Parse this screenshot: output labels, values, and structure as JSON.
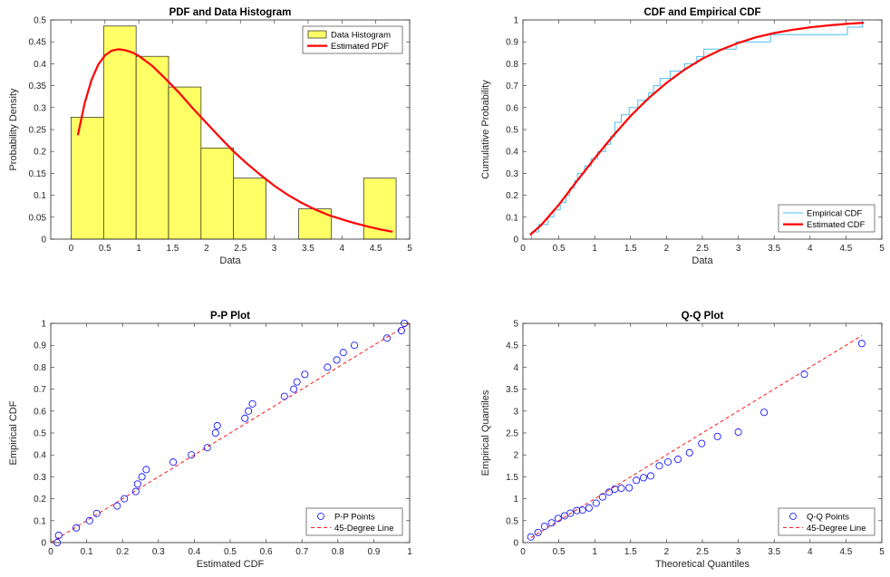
{
  "chart_data": [
    {
      "id": "pdf",
      "type": "bar",
      "title": "PDF and Data Histogram",
      "xlabel": "Data",
      "ylabel": "Probability Density",
      "xlim": [
        -0.3,
        5
      ],
      "ylim": [
        0,
        0.5
      ],
      "xticks": [
        0,
        0.5,
        1,
        1.5,
        2,
        2.5,
        3,
        3.5,
        4,
        4.5,
        5
      ],
      "xticklabels": [
        "0",
        "0.5",
        "1",
        "1.5",
        "2",
        "2.5",
        "3",
        "3.5",
        "4",
        "4.5",
        "5"
      ],
      "yticks": [
        0,
        0.05,
        0.1,
        0.15,
        0.2,
        0.25,
        0.3,
        0.35,
        0.4,
        0.45,
        0.5
      ],
      "yticklabels": [
        "0",
        "0.05",
        "0.1",
        "0.15",
        "0.2",
        "0.25",
        "0.3",
        "0.35",
        "0.4",
        "0.45",
        "0.5"
      ],
      "bins": [
        {
          "x0": 0.0,
          "x1": 0.48,
          "value": 0.278
        },
        {
          "x0": 0.48,
          "x1": 0.96,
          "value": 0.486
        },
        {
          "x0": 0.96,
          "x1": 1.44,
          "value": 0.417
        },
        {
          "x0": 1.44,
          "x1": 1.92,
          "value": 0.347
        },
        {
          "x0": 1.92,
          "x1": 2.4,
          "value": 0.208
        },
        {
          "x0": 2.4,
          "x1": 2.88,
          "value": 0.139
        },
        {
          "x0": 2.88,
          "x1": 3.36,
          "value": 0.0
        },
        {
          "x0": 3.36,
          "x1": 3.84,
          "value": 0.069
        },
        {
          "x0": 3.84,
          "x1": 4.32,
          "value": 0.0
        },
        {
          "x0": 4.32,
          "x1": 4.8,
          "value": 0.139
        }
      ],
      "curve": {
        "x": [
          0.1,
          0.2,
          0.3,
          0.4,
          0.5,
          0.6,
          0.7,
          0.8,
          0.9,
          1.0,
          1.2,
          1.4,
          1.6,
          1.8,
          2.0,
          2.2,
          2.4,
          2.6,
          2.8,
          3.0,
          3.2,
          3.4,
          3.6,
          3.8,
          4.0,
          4.2,
          4.4,
          4.6,
          4.75
        ],
        "y": [
          0.237,
          0.31,
          0.362,
          0.398,
          0.419,
          0.43,
          0.433,
          0.431,
          0.426,
          0.418,
          0.395,
          0.365,
          0.333,
          0.298,
          0.265,
          0.232,
          0.2,
          0.172,
          0.146,
          0.122,
          0.101,
          0.083,
          0.068,
          0.055,
          0.045,
          0.036,
          0.028,
          0.021,
          0.017
        ]
      },
      "series": [
        {
          "name": "Data Histogram",
          "color": "#ffff66",
          "edge": "#000000"
        },
        {
          "name": "Estimated PDF",
          "color": "#ff0000"
        }
      ],
      "legend": "top-right"
    },
    {
      "id": "cdf",
      "type": "line",
      "title": "CDF and Empirical CDF",
      "xlabel": "Data",
      "ylabel": "Cumulative Probability",
      "xlim": [
        0,
        5
      ],
      "ylim": [
        0,
        1
      ],
      "xticks": [
        0,
        0.5,
        1,
        1.5,
        2,
        2.5,
        3,
        3.5,
        4,
        4.5,
        5
      ],
      "xticklabels": [
        "0",
        "0.5",
        "1",
        "1.5",
        "2",
        "2.5",
        "3",
        "3.5",
        "4",
        "4.5",
        "5"
      ],
      "yticks": [
        0,
        0.1,
        0.2,
        0.3,
        0.4,
        0.5,
        0.6,
        0.7,
        0.8,
        0.9,
        1
      ],
      "yticklabels": [
        "0",
        "0.1",
        "0.2",
        "0.3",
        "0.4",
        "0.5",
        "0.6",
        "0.7",
        "0.8",
        "0.9",
        "1"
      ],
      "empirical": {
        "x": [
          0.12,
          0.22,
          0.35,
          0.43,
          0.52,
          0.6,
          0.65,
          0.72,
          0.76,
          0.86,
          0.95,
          1.04,
          1.15,
          1.22,
          1.28,
          1.37,
          1.48,
          1.6,
          1.75,
          1.82,
          1.91,
          2.05,
          2.25,
          2.42,
          2.52,
          2.97,
          3.45,
          4.52,
          4.73
        ],
        "y": [
          0.033,
          0.067,
          0.1,
          0.133,
          0.167,
          0.2,
          0.233,
          0.267,
          0.3,
          0.333,
          0.367,
          0.4,
          0.433,
          0.467,
          0.533,
          0.567,
          0.6,
          0.633,
          0.667,
          0.7,
          0.733,
          0.767,
          0.8,
          0.833,
          0.867,
          0.9,
          0.933,
          0.967,
          1.0
        ]
      },
      "curve": {
        "x": [
          0.1,
          0.25,
          0.5,
          0.75,
          1.0,
          1.25,
          1.5,
          1.75,
          2.0,
          2.25,
          2.5,
          2.75,
          3.0,
          3.25,
          3.5,
          3.75,
          4.0,
          4.25,
          4.5,
          4.75
        ],
        "y": [
          0.02,
          0.063,
          0.157,
          0.264,
          0.369,
          0.469,
          0.562,
          0.643,
          0.713,
          0.773,
          0.823,
          0.863,
          0.895,
          0.921,
          0.94,
          0.955,
          0.966,
          0.975,
          0.982,
          0.987
        ]
      },
      "series": [
        {
          "name": "Empirical CDF",
          "color": "#4dbeee"
        },
        {
          "name": "Estimated CDF",
          "color": "#ff0000"
        }
      ],
      "legend": "bottom-right"
    },
    {
      "id": "pp",
      "type": "scatter",
      "title": "P-P Plot",
      "xlabel": "Estimated CDF",
      "ylabel": "Empirical CDF",
      "xlim": [
        0,
        1
      ],
      "ylim": [
        0,
        1
      ],
      "xticks": [
        0,
        0.1,
        0.2,
        0.3,
        0.4,
        0.5,
        0.6,
        0.7,
        0.8,
        0.9,
        1
      ],
      "xticklabels": [
        "0",
        "0.1",
        "0.2",
        "0.3",
        "0.4",
        "0.5",
        "0.6",
        "0.7",
        "0.8",
        "0.9",
        "1"
      ],
      "yticks": [
        0,
        0.1,
        0.2,
        0.3,
        0.4,
        0.5,
        0.6,
        0.7,
        0.8,
        0.9,
        1
      ],
      "yticklabels": [
        "0",
        "0.1",
        "0.2",
        "0.3",
        "0.4",
        "0.5",
        "0.6",
        "0.7",
        "0.8",
        "0.9",
        "1"
      ],
      "points": {
        "x": [
          0.018,
          0.022,
          0.071,
          0.108,
          0.128,
          0.185,
          0.205,
          0.237,
          0.242,
          0.254,
          0.266,
          0.341,
          0.392,
          0.436,
          0.459,
          0.464,
          0.541,
          0.551,
          0.562,
          0.651,
          0.677,
          0.686,
          0.708,
          0.771,
          0.797,
          0.815,
          0.846,
          0.937,
          0.977,
          0.985
        ],
        "y": [
          0.0,
          0.033,
          0.067,
          0.1,
          0.133,
          0.167,
          0.2,
          0.233,
          0.267,
          0.3,
          0.333,
          0.367,
          0.4,
          0.433,
          0.5,
          0.533,
          0.567,
          0.6,
          0.633,
          0.667,
          0.7,
          0.733,
          0.767,
          0.8,
          0.833,
          0.867,
          0.9,
          0.933,
          0.967,
          1.0
        ]
      },
      "refline": {
        "x": [
          0,
          1
        ],
        "y": [
          0,
          1
        ]
      },
      "series": [
        {
          "name": "P-P Points",
          "color": "#0000ff"
        },
        {
          "name": "45-Degree Line",
          "color": "#ff0000"
        }
      ],
      "legend": "bottom-right"
    },
    {
      "id": "qq",
      "type": "scatter",
      "title": "Q-Q Plot",
      "xlabel": "Theoretical Quantiles",
      "ylabel": "Empirical Quantiles",
      "xlim": [
        0,
        5
      ],
      "ylim": [
        0,
        5
      ],
      "xticks": [
        0,
        0.5,
        1,
        1.5,
        2,
        2.5,
        3,
        3.5,
        4,
        4.5,
        5
      ],
      "xticklabels": [
        "0",
        "0.5",
        "1",
        "1.5",
        "2",
        "2.5",
        "3",
        "3.5",
        "4",
        "4.5",
        "5"
      ],
      "yticks": [
        0,
        0.5,
        1,
        1.5,
        2,
        2.5,
        3,
        3.5,
        4,
        4.5,
        5
      ],
      "yticklabels": [
        "0",
        "0.5",
        "1",
        "1.5",
        "2",
        "2.5",
        "3",
        "3.5",
        "4",
        "4.5",
        "5"
      ],
      "points": {
        "x": [
          0.11,
          0.21,
          0.3,
          0.4,
          0.49,
          0.58,
          0.66,
          0.75,
          0.83,
          0.92,
          1.02,
          1.11,
          1.2,
          1.28,
          1.37,
          1.48,
          1.58,
          1.68,
          1.78,
          1.9,
          2.02,
          2.16,
          2.32,
          2.49,
          2.71,
          3.0,
          3.36,
          3.92,
          4.72
        ],
        "y": [
          0.13,
          0.23,
          0.37,
          0.45,
          0.55,
          0.61,
          0.67,
          0.73,
          0.74,
          0.79,
          0.9,
          1.04,
          1.15,
          1.22,
          1.24,
          1.25,
          1.42,
          1.48,
          1.52,
          1.75,
          1.84,
          1.9,
          2.05,
          2.26,
          2.42,
          2.52,
          2.97,
          3.84,
          4.54
        ]
      },
      "refline": {
        "x": [
          0.11,
          4.72
        ],
        "y": [
          0.11,
          4.72
        ]
      },
      "series": [
        {
          "name": "Q-Q Points",
          "color": "#0000ff"
        },
        {
          "name": "45-Degree Line",
          "color": "#ff0000"
        }
      ],
      "legend": "bottom-right"
    }
  ]
}
